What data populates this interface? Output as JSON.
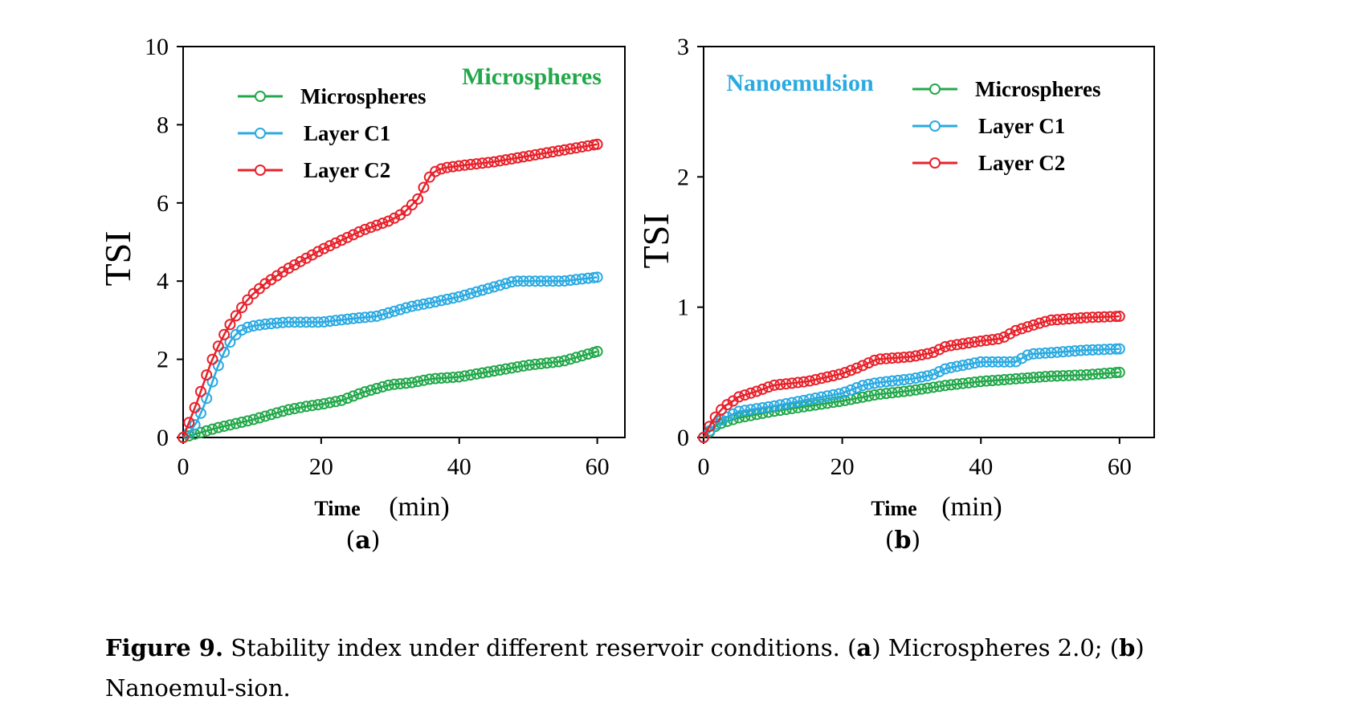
{
  "chart_data": [
    {
      "type": "line",
      "title": "Microspheres",
      "title_color": "#22a84a",
      "xlabel_bold": "Time",
      "xlabel_unit": "(min)",
      "ylabel": "TSI",
      "xlim": [
        0,
        64
      ],
      "ylim": [
        0,
        10
      ],
      "xticks": [
        0,
        20,
        40,
        60
      ],
      "yticks": [
        0,
        2,
        4,
        6,
        8,
        10
      ],
      "panel_label": "a",
      "legend_position": "top-left",
      "series": [
        {
          "name": "Microspheres",
          "color": "#22a84a",
          "x": [
            0,
            2,
            5,
            10,
            15,
            18,
            20,
            23,
            26,
            30,
            33,
            36,
            40,
            45,
            50,
            55,
            60
          ],
          "y": [
            0,
            0.1,
            0.25,
            0.45,
            0.7,
            0.8,
            0.85,
            0.95,
            1.15,
            1.35,
            1.4,
            1.5,
            1.55,
            1.7,
            1.85,
            1.95,
            2.2
          ]
        },
        {
          "name": "Layer C1",
          "color": "#2aaae2",
          "x": [
            0,
            1,
            2,
            3,
            4,
            5,
            6,
            7,
            8,
            9,
            10,
            12,
            15,
            20,
            25,
            28,
            30,
            33,
            36,
            40,
            45,
            48,
            50,
            55,
            60
          ],
          "y": [
            0,
            0.15,
            0.4,
            0.8,
            1.3,
            1.8,
            2.2,
            2.5,
            2.7,
            2.8,
            2.85,
            2.9,
            2.95,
            2.95,
            3.05,
            3.1,
            3.2,
            3.35,
            3.45,
            3.6,
            3.85,
            4.0,
            4.0,
            4.0,
            4.1
          ]
        },
        {
          "name": "Layer C2",
          "color": "#e8212a",
          "x": [
            0,
            1,
            2,
            3,
            4,
            5,
            6,
            7,
            8,
            9,
            10,
            12,
            15,
            18,
            20,
            23,
            26,
            30,
            32,
            34,
            35,
            36,
            37,
            38,
            40,
            45,
            50,
            55,
            60
          ],
          "y": [
            0,
            0.45,
            0.9,
            1.4,
            1.9,
            2.3,
            2.65,
            2.95,
            3.2,
            3.45,
            3.65,
            3.95,
            4.3,
            4.6,
            4.8,
            5.05,
            5.3,
            5.55,
            5.75,
            6.1,
            6.45,
            6.75,
            6.85,
            6.9,
            6.95,
            7.05,
            7.2,
            7.35,
            7.5
          ]
        }
      ]
    },
    {
      "type": "line",
      "title": "Nanoemulsion",
      "title_color": "#2aaae2",
      "xlabel_bold": "Time",
      "xlabel_unit": "(min)",
      "ylabel": "TSI",
      "xlim": [
        0,
        65
      ],
      "ylim": [
        0,
        3
      ],
      "xticks": [
        0,
        20,
        40,
        60
      ],
      "yticks": [
        0,
        1,
        2,
        3
      ],
      "panel_label": "b",
      "legend_position": "top-right",
      "series": [
        {
          "name": "Microspheres",
          "color": "#22a84a",
          "x": [
            0,
            2,
            5,
            10,
            15,
            20,
            25,
            30,
            35,
            40,
            45,
            50,
            55,
            60
          ],
          "y": [
            0,
            0.1,
            0.15,
            0.2,
            0.24,
            0.28,
            0.33,
            0.36,
            0.4,
            0.43,
            0.45,
            0.47,
            0.48,
            0.5
          ]
        },
        {
          "name": "Layer C1",
          "color": "#2aaae2",
          "x": [
            0,
            2,
            5,
            10,
            15,
            20,
            23,
            25,
            30,
            33,
            35,
            40,
            45,
            47,
            50,
            55,
            60
          ],
          "y": [
            0,
            0.12,
            0.2,
            0.24,
            0.29,
            0.34,
            0.4,
            0.42,
            0.45,
            0.48,
            0.53,
            0.58,
            0.58,
            0.64,
            0.65,
            0.67,
            0.68
          ]
        },
        {
          "name": "Layer C2",
          "color": "#e8212a",
          "x": [
            0,
            1,
            2,
            3,
            4,
            5,
            8,
            10,
            15,
            20,
            22,
            25,
            30,
            33,
            35,
            40,
            43,
            45,
            48,
            50,
            55,
            60
          ],
          "y": [
            0,
            0.1,
            0.18,
            0.24,
            0.27,
            0.31,
            0.36,
            0.4,
            0.43,
            0.49,
            0.53,
            0.6,
            0.62,
            0.65,
            0.7,
            0.74,
            0.76,
            0.82,
            0.87,
            0.9,
            0.92,
            0.93
          ]
        }
      ]
    }
  ],
  "caption": {
    "lead": "Figure 9.",
    "text": " Stability index under different reservoir conditions. (",
    "a": "a",
    "mid": ") Microspheres 2.0; (",
    "b": "b",
    "tail": ") Nanoemul-sion."
  }
}
